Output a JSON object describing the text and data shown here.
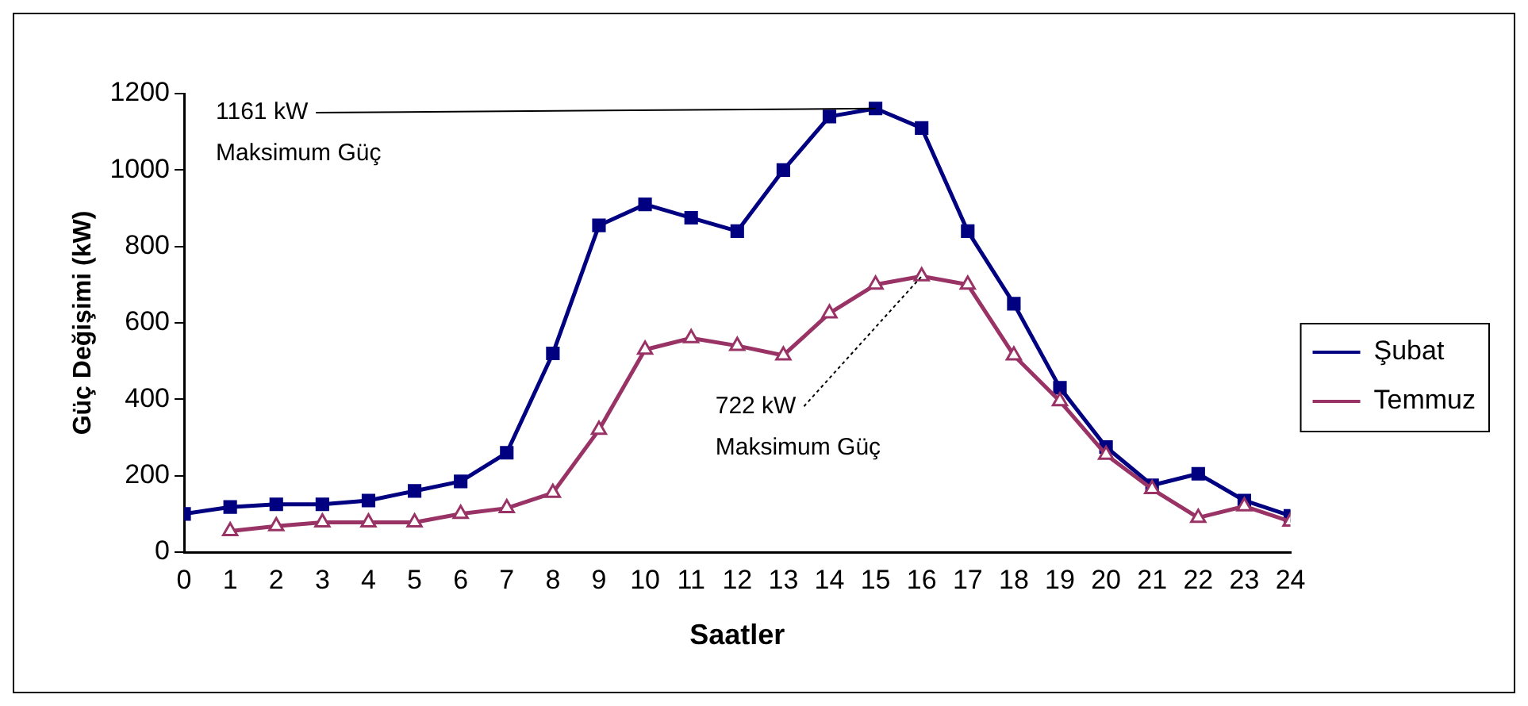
{
  "chart_data": {
    "type": "line",
    "xlabel": "Saatler",
    "ylabel": "Güç Değişimi (kW)",
    "x": [
      0,
      1,
      2,
      3,
      4,
      5,
      6,
      7,
      8,
      9,
      10,
      11,
      12,
      13,
      14,
      15,
      16,
      17,
      18,
      19,
      20,
      21,
      22,
      23,
      24
    ],
    "series": [
      {
        "name": "Şubat",
        "color": "#000080",
        "marker": "square",
        "values": [
          100,
          118,
          125,
          125,
          135,
          160,
          185,
          260,
          520,
          855,
          910,
          875,
          840,
          1000,
          1140,
          1161,
          1110,
          840,
          650,
          430,
          275,
          175,
          205,
          135,
          95
        ]
      },
      {
        "name": "Temmuz",
        "color": "#993366",
        "marker": "triangle",
        "values": [
          null,
          55,
          68,
          78,
          78,
          78,
          100,
          115,
          155,
          320,
          530,
          560,
          540,
          515,
          625,
          700,
          722,
          700,
          515,
          395,
          255,
          165,
          90,
          120,
          80
        ]
      }
    ],
    "xlim": [
      0,
      24
    ],
    "xticks": [
      0,
      1,
      2,
      3,
      4,
      5,
      6,
      7,
      8,
      9,
      10,
      11,
      12,
      13,
      14,
      15,
      16,
      17,
      18,
      19,
      20,
      21,
      22,
      23,
      24
    ],
    "ylim": [
      0,
      1200
    ],
    "yticks": [
      0,
      200,
      400,
      600,
      800,
      1000,
      1200
    ],
    "grid": false,
    "legend": "right",
    "annotations": [
      {
        "text": "1161 kW\nMaksimum Güç",
        "x": 15,
        "y": 1161
      },
      {
        "text": "722 kW\nMaksimum Güç",
        "x": 16,
        "y": 722
      }
    ]
  }
}
